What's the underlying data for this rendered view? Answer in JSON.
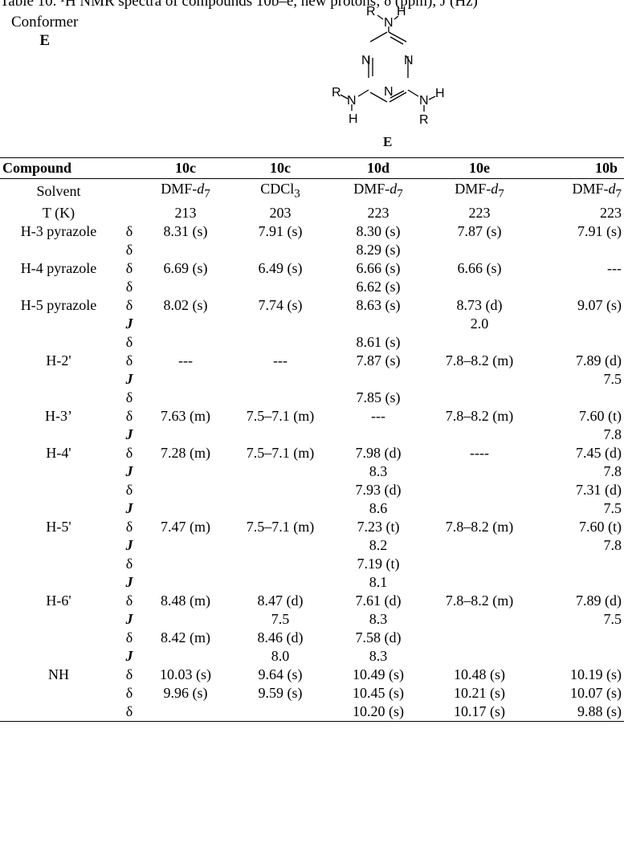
{
  "caption": "Table 10. ¹H NMR spectra of compounds 10b–e, new protons; δ (ppm), J (Hz)",
  "conformer": {
    "label": "Conformer",
    "name": "E"
  },
  "structure": {
    "atom_R": "R",
    "atom_N": "N",
    "atom_H": "H",
    "caption": "E"
  },
  "table": {
    "header": [
      "Compound",
      "10c",
      "10c",
      "10d",
      "10e",
      "10b"
    ],
    "solvent_label": "Solvent",
    "solvents": [
      {
        "base": "DMF-",
        "sub": "d",
        "subnum": "7"
      },
      {
        "base": "CDCl",
        "sub": "",
        "subnum": "3"
      },
      {
        "base": "DMF-",
        "sub": "d",
        "subnum": "7"
      },
      {
        "base": "DMF-",
        "sub": "d",
        "subnum": "7"
      },
      {
        "base": "DMF-",
        "sub": "d",
        "subnum": "7"
      }
    ],
    "temp_label": "T (K)",
    "temps": [
      "213",
      "203",
      "223",
      "223",
      "223"
    ],
    "rows": [
      {
        "label": "H-3 pyrazole",
        "sym": "δ",
        "v": [
          "8.31 (s)",
          "7.91 (s)",
          "8.30 (s)",
          "7.87 (s)",
          "7.91 (s)"
        ]
      },
      {
        "label": "",
        "sym": "δ",
        "v": [
          "",
          "",
          "8.29 (s)",
          "",
          ""
        ]
      },
      {
        "label": "H-4 pyrazole",
        "sym": "δ",
        "v": [
          "6.69 (s)",
          "6.49 (s)",
          "6.66 (s)",
          "6.66 (s)",
          "---"
        ]
      },
      {
        "label": "",
        "sym": "δ",
        "v": [
          "",
          "",
          "6.62 (s)",
          "",
          ""
        ]
      },
      {
        "label": "H-5 pyrazole",
        "sym": "δ",
        "v": [
          "8.02 (s)",
          "7.74 (s)",
          "8.63 (s)",
          "8.73 (d)",
          "9.07 (s)"
        ]
      },
      {
        "label": "",
        "sym": "J",
        "v": [
          "",
          "",
          "",
          "2.0",
          ""
        ]
      },
      {
        "label": "",
        "sym": "δ",
        "v": [
          "",
          "",
          "8.61 (s)",
          "",
          ""
        ]
      },
      {
        "label": "H-2'",
        "sym": "δ",
        "v": [
          "---",
          "---",
          "7.87 (s)",
          "7.8–8.2 (m)",
          "7.89 (d)"
        ]
      },
      {
        "label": "",
        "sym": "J",
        "v": [
          "",
          "",
          "",
          "",
          "7.5"
        ]
      },
      {
        "label": "",
        "sym": "δ",
        "v": [
          "",
          "",
          "7.85 (s)",
          "",
          ""
        ]
      },
      {
        "label": "H-3’",
        "sym": "δ",
        "v": [
          "7.63 (m)",
          "7.5–7.1 (m)",
          "---",
          "7.8–8.2 (m)",
          "7.60 (t)"
        ]
      },
      {
        "label": "",
        "sym": "J",
        "v": [
          "",
          "",
          "",
          "",
          "7.8"
        ]
      },
      {
        "label": "H-4'",
        "sym": "δ",
        "v": [
          "7.28 (m)",
          "7.5–7.1 (m)",
          "7.98 (d)",
          "----",
          "7.45 (d)"
        ]
      },
      {
        "label": "",
        "sym": "J",
        "v": [
          "",
          "",
          "8.3",
          "",
          "7.8"
        ]
      },
      {
        "label": "",
        "sym": "δ",
        "v": [
          "",
          "",
          "7.93 (d)",
          "",
          "7.31 (d)"
        ]
      },
      {
        "label": "",
        "sym": "J",
        "v": [
          "",
          "",
          "8.6",
          "",
          "7.5"
        ]
      },
      {
        "label": "H-5'",
        "sym": "δ",
        "v": [
          "7.47 (m)",
          "7.5–7.1 (m)",
          "7.23 (t)",
          "7.8–8.2 (m)",
          "7.60 (t)"
        ]
      },
      {
        "label": "",
        "sym": "J",
        "v": [
          "",
          "",
          "8.2",
          "",
          "7.8"
        ]
      },
      {
        "label": "",
        "sym": "δ",
        "v": [
          "",
          "",
          "7.19 (t)",
          "",
          ""
        ]
      },
      {
        "label": "",
        "sym": "J",
        "v": [
          "",
          "",
          "8.1",
          "",
          ""
        ]
      },
      {
        "label": "H-6'",
        "sym": "δ",
        "v": [
          "8.48 (m)",
          "8.47 (d)",
          "7.61 (d)",
          "7.8–8.2 (m)",
          "7.89 (d)"
        ]
      },
      {
        "label": "",
        "sym": "J",
        "v": [
          "",
          "7.5",
          "8.3",
          "",
          "7.5"
        ]
      },
      {
        "label": "",
        "sym": "δ",
        "v": [
          "8.42 (m)",
          "8.46 (d)",
          "7.58 (d)",
          "",
          ""
        ]
      },
      {
        "label": "",
        "sym": "J",
        "v": [
          "",
          "8.0",
          "8.3",
          "",
          ""
        ]
      },
      {
        "label": "NH",
        "sym": "δ",
        "v": [
          "10.03 (s)",
          "9.64 (s)",
          "10.49 (s)",
          "10.48 (s)",
          "10.19 (s)"
        ]
      },
      {
        "label": "",
        "sym": "δ",
        "v": [
          "9.96 (s)",
          "9.59 (s)",
          "10.45 (s)",
          "10.21 (s)",
          "10.07 (s)"
        ]
      },
      {
        "label": "",
        "sym": "δ",
        "v": [
          "",
          "",
          "10.20 (s)",
          "10.17 (s)",
          "9.88 (s)"
        ]
      }
    ]
  }
}
